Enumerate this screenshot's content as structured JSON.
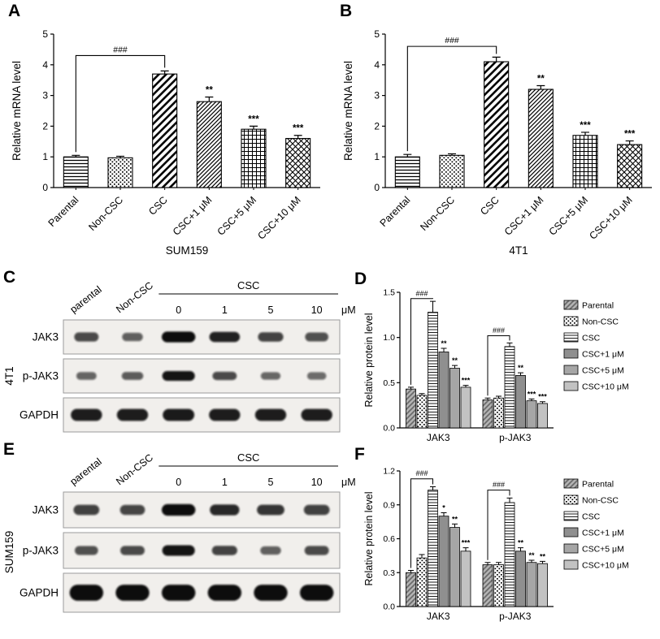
{
  "figure_bg": "#ffffff",
  "panels": {
    "A": {
      "letter": "A"
    },
    "B": {
      "letter": "B"
    },
    "C": {
      "letter": "C"
    },
    "D": {
      "letter": "D"
    },
    "E": {
      "letter": "E"
    },
    "F": {
      "letter": "F"
    }
  },
  "conditions": [
    "Parental",
    "Non-CSC",
    "CSC",
    "CSC+1 μM",
    "CSC+5 μM",
    "CSC+10 μM"
  ],
  "chart_data": [
    {
      "id": "chartA",
      "panel": "A",
      "type": "bar",
      "title": "SUM159",
      "ylabel": "Relative mRNA level",
      "categories": [
        "Parental",
        "Non-CSC",
        "CSC",
        "CSC+1 μM",
        "CSC+5 μM",
        "CSC+10 μM"
      ],
      "values": [
        1.0,
        0.97,
        3.7,
        2.8,
        1.9,
        1.6
      ],
      "errors": [
        0.05,
        0.05,
        0.1,
        0.15,
        0.1,
        0.1
      ],
      "sig": [
        "",
        "",
        "",
        "**",
        "***",
        "***"
      ],
      "brackets": [
        {
          "from": 0,
          "to": 2,
          "y": 4.3,
          "label": "###"
        }
      ],
      "ylim": [
        0,
        5
      ],
      "yticks": [
        0,
        1,
        2,
        3,
        4,
        5
      ],
      "ytick_labels": [
        "0",
        "1",
        "2",
        "3",
        "4",
        "5"
      ],
      "grid": false,
      "legend_position": "none",
      "pattern_set": "mrna"
    },
    {
      "id": "chartB",
      "panel": "B",
      "type": "bar",
      "title": "4T1",
      "ylabel": "Relative mRNA level",
      "categories": [
        "Parental",
        "Non-CSC",
        "CSC",
        "CSC+1 μM",
        "CSC+5 μM",
        "CSC+10 μM"
      ],
      "values": [
        1.0,
        1.05,
        4.1,
        3.2,
        1.7,
        1.4
      ],
      "errors": [
        0.08,
        0.05,
        0.15,
        0.12,
        0.1,
        0.12
      ],
      "sig": [
        "",
        "",
        "",
        "**",
        "***",
        "***"
      ],
      "brackets": [
        {
          "from": 0,
          "to": 2,
          "y": 4.6,
          "label": "###"
        }
      ],
      "ylim": [
        0,
        5
      ],
      "yticks": [
        0,
        1,
        2,
        3,
        4,
        5
      ],
      "ytick_labels": [
        "0",
        "1",
        "2",
        "3",
        "4",
        "5"
      ],
      "grid": false,
      "legend_position": "none",
      "pattern_set": "mrna"
    },
    {
      "id": "chartD",
      "panel": "D",
      "type": "grouped-bar",
      "title": "",
      "ylabel": "Relative protein level",
      "categories": [
        "JAK3",
        "p-JAK3"
      ],
      "series": [
        {
          "name": "Parental",
          "values": [
            0.43,
            0.31
          ],
          "errors": [
            0.02,
            0.02
          ],
          "sig": [
            "",
            ""
          ]
        },
        {
          "name": "Non-CSC",
          "values": [
            0.36,
            0.33
          ],
          "errors": [
            0.02,
            0.02
          ],
          "sig": [
            "",
            ""
          ]
        },
        {
          "name": "CSC",
          "values": [
            1.28,
            0.9
          ],
          "errors": [
            0.12,
            0.04
          ],
          "sig": [
            "",
            ""
          ]
        },
        {
          "name": "CSC+1 μM",
          "values": [
            0.84,
            0.58
          ],
          "errors": [
            0.04,
            0.03
          ],
          "sig": [
            "**",
            "**"
          ]
        },
        {
          "name": "CSC+5 μM",
          "values": [
            0.66,
            0.3
          ],
          "errors": [
            0.03,
            0.02
          ],
          "sig": [
            "**",
            "***"
          ]
        },
        {
          "name": "CSC+10 μM",
          "values": [
            0.45,
            0.27
          ],
          "errors": [
            0.02,
            0.02
          ],
          "sig": [
            "***",
            "***"
          ]
        }
      ],
      "brackets": [
        {
          "category": 0,
          "from": 0,
          "to": 2,
          "y": 1.43,
          "label": "###"
        },
        {
          "category": 1,
          "from": 0,
          "to": 2,
          "y": 1.02,
          "label": "###"
        }
      ],
      "ylim": [
        0,
        1.5
      ],
      "yticks": [
        0,
        0.5,
        1.0,
        1.5
      ],
      "ytick_labels": [
        "0.0",
        "0.5",
        "1.0",
        "1.5"
      ],
      "legend": [
        "Parental",
        "Non-CSC",
        "CSC",
        "CSC+1 μM",
        "CSC+5 μM",
        "CSC+10 μM"
      ],
      "grid": false,
      "legend_position": "right",
      "pattern_set": "protein"
    },
    {
      "id": "chartF",
      "panel": "F",
      "type": "grouped-bar",
      "title": "",
      "ylabel": "Relative protein level",
      "categories": [
        "JAK3",
        "p-JAK3"
      ],
      "series": [
        {
          "name": "Parental",
          "values": [
            0.3,
            0.37
          ],
          "errors": [
            0.02,
            0.02
          ],
          "sig": [
            "",
            ""
          ]
        },
        {
          "name": "Non-CSC",
          "values": [
            0.43,
            0.37
          ],
          "errors": [
            0.03,
            0.02
          ],
          "sig": [
            "",
            ""
          ]
        },
        {
          "name": "CSC",
          "values": [
            1.03,
            0.92
          ],
          "errors": [
            0.03,
            0.04
          ],
          "sig": [
            "",
            ""
          ]
        },
        {
          "name": "CSC+1 μM",
          "values": [
            0.8,
            0.49
          ],
          "errors": [
            0.03,
            0.03
          ],
          "sig": [
            "*",
            "**"
          ]
        },
        {
          "name": "CSC+5 μM",
          "values": [
            0.7,
            0.39
          ],
          "errors": [
            0.03,
            0.02
          ],
          "sig": [
            "**",
            "**"
          ]
        },
        {
          "name": "CSC+10 μM",
          "values": [
            0.49,
            0.38
          ],
          "errors": [
            0.03,
            0.02
          ],
          "sig": [
            "***",
            "**"
          ]
        }
      ],
      "brackets": [
        {
          "category": 0,
          "from": 0,
          "to": 2,
          "y": 1.13,
          "label": "###"
        },
        {
          "category": 1,
          "from": 0,
          "to": 2,
          "y": 1.03,
          "label": "###"
        }
      ],
      "ylim": [
        0,
        1.2
      ],
      "yticks": [
        0,
        0.3,
        0.6,
        0.9,
        1.2
      ],
      "ytick_labels": [
        "0.0",
        "0.3",
        "0.6",
        "0.9",
        "1.2"
      ],
      "legend": [
        "Parental",
        "Non-CSC",
        "CSC",
        "CSC+1 μM",
        "CSC+5 μM",
        "CSC+10 μM"
      ],
      "grid": false,
      "legend_position": "right",
      "pattern_set": "protein"
    }
  ],
  "blots": [
    {
      "id": "blotC",
      "panel": "C",
      "cell_line": "4T1",
      "lane_labels": [
        "parental",
        "Non-CSC"
      ],
      "treatment_label": "CSC",
      "doses": [
        "0",
        "1",
        "5",
        "10"
      ],
      "dose_unit": "μM",
      "rows": [
        {
          "label": "JAK3",
          "bands": [
            0.55,
            0.38,
            1.0,
            0.85,
            0.6,
            0.5
          ]
        },
        {
          "label": "p-JAK3",
          "bands": [
            0.35,
            0.42,
            0.95,
            0.55,
            0.33,
            0.3
          ]
        },
        {
          "label": "GAPDH",
          "bands": [
            0.88,
            0.88,
            0.9,
            0.88,
            0.88,
            0.88
          ]
        }
      ]
    },
    {
      "id": "blotE",
      "panel": "E",
      "cell_line": "SUM159",
      "lane_labels": [
        "parental",
        "Non-CSC"
      ],
      "treatment_label": "CSC",
      "doses": [
        "0",
        "1",
        "5",
        "10"
      ],
      "dose_unit": "μM",
      "rows": [
        {
          "label": "JAK3",
          "bands": [
            0.62,
            0.58,
            1.0,
            0.8,
            0.7,
            0.62
          ]
        },
        {
          "label": "p-JAK3",
          "bands": [
            0.5,
            0.55,
            0.95,
            0.6,
            0.38,
            0.55
          ]
        },
        {
          "label": "GAPDH",
          "bands": [
            1.0,
            1.0,
            1.0,
            1.0,
            1.0,
            1.0
          ]
        }
      ]
    }
  ]
}
